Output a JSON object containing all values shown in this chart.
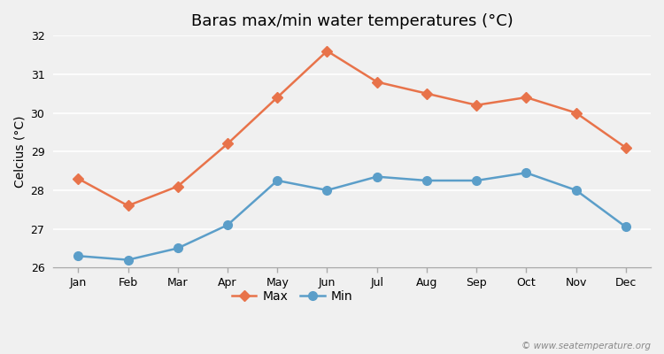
{
  "title": "Baras max/min water temperatures (°C)",
  "ylabel": "Celcius (°C)",
  "months": [
    "Jan",
    "Feb",
    "Mar",
    "Apr",
    "May",
    "Jun",
    "Jul",
    "Aug",
    "Sep",
    "Oct",
    "Nov",
    "Dec"
  ],
  "max_values": [
    28.3,
    27.6,
    28.1,
    29.2,
    30.4,
    31.6,
    30.8,
    30.5,
    30.2,
    30.4,
    30.0,
    29.1
  ],
  "min_values": [
    26.3,
    26.2,
    26.5,
    27.1,
    28.25,
    28.0,
    28.35,
    28.25,
    28.25,
    28.45,
    28.0,
    27.05
  ],
  "max_color": "#e8734a",
  "min_color": "#5b9ec9",
  "fig_facecolor": "#f0f0f0",
  "plot_facecolor": "#f0f0f0",
  "grid_color": "#ffffff",
  "spine_color": "#aaaaaa",
  "ylim": [
    26,
    32
  ],
  "yticks": [
    26,
    27,
    28,
    29,
    30,
    31,
    32
  ],
  "legend_labels": [
    "Max",
    "Min"
  ],
  "watermark": "© www.seatemperature.org",
  "title_fontsize": 13,
  "axis_label_fontsize": 10,
  "tick_fontsize": 9,
  "legend_fontsize": 10,
  "max_marker": "D",
  "min_marker": "o",
  "line_width": 1.8,
  "max_marker_size": 6,
  "min_marker_size": 7
}
